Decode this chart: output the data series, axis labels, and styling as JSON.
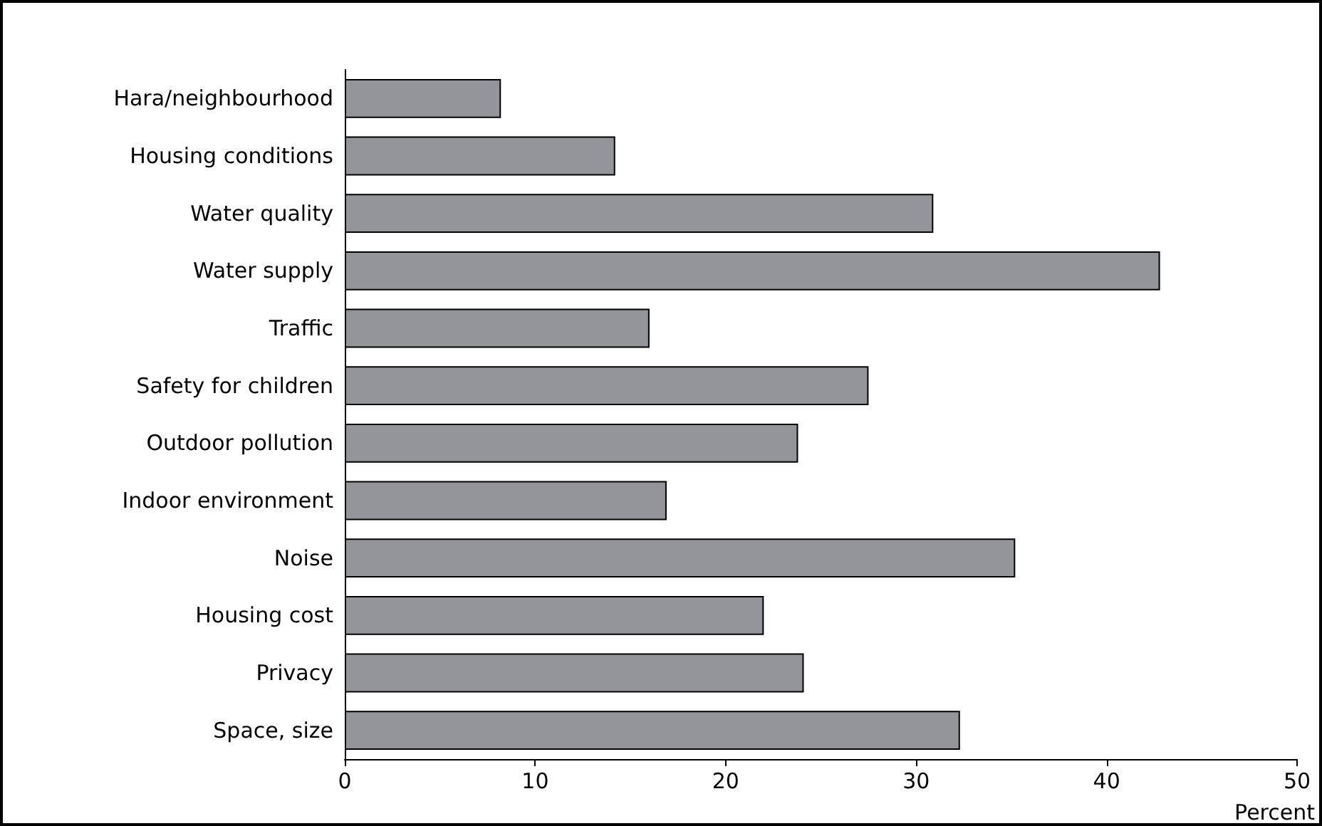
{
  "chart_data": {
    "type": "bar",
    "orientation": "horizontal",
    "xlabel": "Percent",
    "categories": [
      "Hara/neighbourhood",
      "Housing conditions",
      "Water quality",
      "Water supply",
      "Traffic",
      "Safety for children",
      "Outdoor pollution",
      "Indoor environment",
      "Noise",
      "Housing cost",
      "Privacy",
      "Space, size"
    ],
    "values": [
      8.2,
      14.2,
      30.9,
      42.8,
      16.0,
      27.5,
      23.8,
      16.9,
      35.2,
      22.0,
      24.1,
      32.3
    ],
    "color": "#939598",
    "xlim": [
      0,
      50
    ],
    "xticks": [
      0,
      10,
      20,
      30,
      40,
      50
    ],
    "grid": false
  }
}
